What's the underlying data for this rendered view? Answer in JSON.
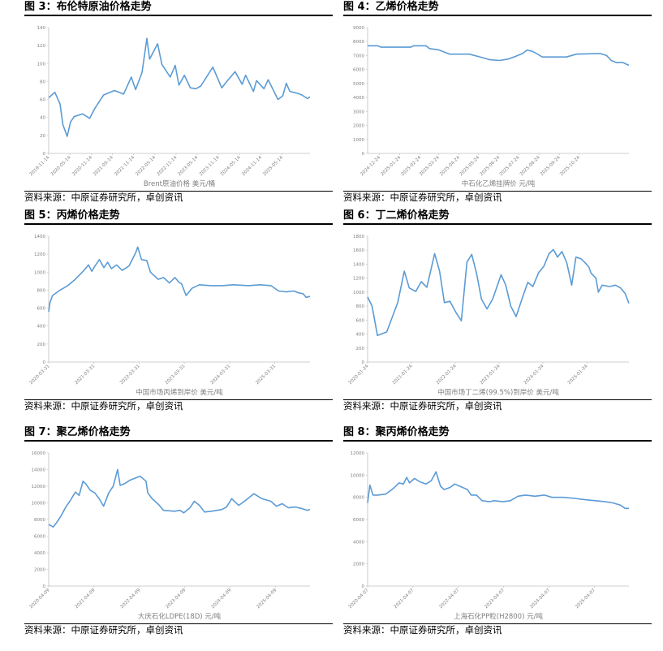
{
  "chart_data": [
    {
      "id": "c1",
      "type": "line",
      "figure_title": "图 3：布伦特原油价格走势",
      "xlabel": "Brent原油价格 美元/桶",
      "source": "资料来源：中原证券研究所，卓创资讯",
      "ylim": [
        0,
        140
      ],
      "yticks": [
        0,
        20,
        40,
        60,
        80,
        100,
        120,
        140
      ],
      "xrange": [
        "2019-11-14",
        "2026-01-10"
      ],
      "xticks": [
        "2019-11-14",
        "2020-05-14",
        "2020-11-14",
        "2021-05-14",
        "2021-11-14",
        "2022-05-14",
        "2022-11-14",
        "2023-05-14",
        "2023-11-14",
        "2024-05-14",
        "2024-11-14",
        "2025-05-14"
      ],
      "color": "#5b9bd5",
      "points": [
        [
          "2019-11-14",
          62
        ],
        [
          "2020-01-06",
          68
        ],
        [
          "2020-02-20",
          55
        ],
        [
          "2020-03-15",
          32
        ],
        [
          "2020-04-21",
          19
        ],
        [
          "2020-05-20",
          35
        ],
        [
          "2020-06-20",
          41
        ],
        [
          "2020-09-01",
          44
        ],
        [
          "2020-11-01",
          39
        ],
        [
          "2020-12-15",
          50
        ],
        [
          "2021-03-01",
          65
        ],
        [
          "2021-06-01",
          70
        ],
        [
          "2021-08-20",
          66
        ],
        [
          "2021-10-25",
          85
        ],
        [
          "2021-12-01",
          71
        ],
        [
          "2022-01-25",
          90
        ],
        [
          "2022-03-08",
          128
        ],
        [
          "2022-04-01",
          105
        ],
        [
          "2022-06-08",
          122
        ],
        [
          "2022-07-15",
          99
        ],
        [
          "2022-09-25",
          85
        ],
        [
          "2022-11-07",
          98
        ],
        [
          "2022-12-09",
          76
        ],
        [
          "2023-01-25",
          87
        ],
        [
          "2023-03-17",
          73
        ],
        [
          "2023-05-04",
          72
        ],
        [
          "2023-06-15",
          75
        ],
        [
          "2023-09-27",
          96
        ],
        [
          "2023-12-12",
          73
        ],
        [
          "2024-01-25",
          80
        ],
        [
          "2024-04-05",
          91
        ],
        [
          "2024-06-05",
          77
        ],
        [
          "2024-07-05",
          87
        ],
        [
          "2024-09-10",
          69
        ],
        [
          "2024-10-07",
          81
        ],
        [
          "2024-12-10",
          72
        ],
        [
          "2025-01-15",
          82
        ],
        [
          "2025-04-09",
          60
        ],
        [
          "2025-05-20",
          64
        ],
        [
          "2025-06-20",
          78
        ],
        [
          "2025-07-20",
          69
        ],
        [
          "2025-09-20",
          67
        ],
        [
          "2025-11-01",
          65
        ],
        [
          "2025-12-20",
          61
        ],
        [
          "2026-01-10",
          63
        ]
      ]
    },
    {
      "id": "c2",
      "type": "line",
      "figure_title": "图 4：乙烯价格走势",
      "xlabel": "中石化乙烯挂牌价 元/吨",
      "source": "资料来源：中原证券研究所，卓创资讯",
      "ylim": [
        0,
        9000
      ],
      "yticks": [
        0,
        1000,
        2000,
        3000,
        4000,
        5000,
        6000,
        7000,
        8000,
        9000
      ],
      "xrange": [
        "2024-12-06",
        "2026-01-08"
      ],
      "xticks": [
        "2024-12-24",
        "2025-01-24",
        "2025-02-24",
        "2025-03-24",
        "2025-04-24",
        "2025-05-24",
        "2025-06-24",
        "2025-07-24",
        "2025-08-24",
        "2025-09-24",
        "2025-10-24"
      ],
      "color": "#5b9bd5",
      "points": [
        [
          "2024-12-06",
          7700
        ],
        [
          "2024-12-22",
          7700
        ],
        [
          "2024-12-26",
          7600
        ],
        [
          "2025-02-10",
          7600
        ],
        [
          "2025-02-14",
          7700
        ],
        [
          "2025-03-05",
          7700
        ],
        [
          "2025-03-10",
          7500
        ],
        [
          "2025-03-25",
          7400
        ],
        [
          "2025-04-10",
          7100
        ],
        [
          "2025-05-10",
          7100
        ],
        [
          "2025-05-30",
          6850
        ],
        [
          "2025-06-10",
          6700
        ],
        [
          "2025-06-25",
          6650
        ],
        [
          "2025-07-08",
          6750
        ],
        [
          "2025-07-20",
          6950
        ],
        [
          "2025-07-30",
          7150
        ],
        [
          "2025-08-06",
          7400
        ],
        [
          "2025-08-14",
          7300
        ],
        [
          "2025-08-22",
          7100
        ],
        [
          "2025-08-29",
          6900
        ],
        [
          "2025-09-12",
          6900
        ],
        [
          "2025-10-05",
          6900
        ],
        [
          "2025-10-20",
          7100
        ],
        [
          "2025-11-25",
          7150
        ],
        [
          "2025-12-05",
          7000
        ],
        [
          "2025-12-12",
          6650
        ],
        [
          "2025-12-20",
          6500
        ],
        [
          "2025-12-30",
          6500
        ],
        [
          "2026-01-08",
          6300
        ]
      ]
    },
    {
      "id": "c3",
      "type": "line",
      "figure_title": "图 5：丙烯价格走势",
      "xlabel": "中国市场丙烯到岸价 美元/吨",
      "source": "资料来源：中原证券研究所，卓创资讯",
      "ylim": [
        0,
        1400
      ],
      "yticks": [
        0,
        200,
        400,
        600,
        800,
        1000,
        1200,
        1400
      ],
      "xrange": [
        "2020-03-31",
        "2026-01-10"
      ],
      "xticks": [
        "2020-03-31",
        "2021-03-31",
        "2022-03-31",
        "2023-03-31",
        "2024-03-31",
        "2025-03-31"
      ],
      "color": "#5b9bd5",
      "points": [
        [
          "2020-03-31",
          560
        ],
        [
          "2020-04-10",
          660
        ],
        [
          "2020-05-01",
          740
        ],
        [
          "2020-07-01",
          800
        ],
        [
          "2020-09-01",
          850
        ],
        [
          "2020-11-01",
          920
        ],
        [
          "2021-01-10",
          1020
        ],
        [
          "2021-02-15",
          1080
        ],
        [
          "2021-03-15",
          1010
        ],
        [
          "2021-04-05",
          1060
        ],
        [
          "2021-05-15",
          1140
        ],
        [
          "2021-06-20",
          1050
        ],
        [
          "2021-07-20",
          1110
        ],
        [
          "2021-08-20",
          1040
        ],
        [
          "2021-10-01",
          1080
        ],
        [
          "2021-11-15",
          1020
        ],
        [
          "2022-01-10",
          1070
        ],
        [
          "2022-03-05",
          1220
        ],
        [
          "2022-03-20",
          1280
        ],
        [
          "2022-04-20",
          1140
        ],
        [
          "2022-06-01",
          1130
        ],
        [
          "2022-07-01",
          1000
        ],
        [
          "2022-09-01",
          920
        ],
        [
          "2022-10-15",
          940
        ],
        [
          "2022-12-01",
          880
        ],
        [
          "2023-01-15",
          940
        ],
        [
          "2023-02-15",
          890
        ],
        [
          "2023-03-10",
          870
        ],
        [
          "2023-04-15",
          740
        ],
        [
          "2023-06-01",
          820
        ],
        [
          "2023-08-01",
          860
        ],
        [
          "2023-11-01",
          850
        ],
        [
          "2024-02-01",
          850
        ],
        [
          "2024-05-01",
          860
        ],
        [
          "2024-09-01",
          850
        ],
        [
          "2024-12-01",
          860
        ],
        [
          "2025-03-01",
          850
        ],
        [
          "2025-05-01",
          790
        ],
        [
          "2025-07-01",
          780
        ],
        [
          "2025-09-01",
          790
        ],
        [
          "2025-10-10",
          770
        ],
        [
          "2025-11-15",
          760
        ],
        [
          "2025-12-10",
          720
        ],
        [
          "2026-01-10",
          730
        ]
      ]
    },
    {
      "id": "c4",
      "type": "line",
      "figure_title": "图 6：丁二烯价格走势",
      "xlabel": "中国市场丁二烯(99.5%)到岸价 美元/吨",
      "source": "资料来源：中原证券研究所，卓创资讯",
      "ylim": [
        0,
        1800
      ],
      "yticks": [
        0,
        200,
        400,
        600,
        800,
        1000,
        1200,
        1400,
        1600,
        1800
      ],
      "xrange": [
        "2020-01-24",
        "2026-01-10"
      ],
      "xticks": [
        "2020-01-24",
        "2021-01-24",
        "2022-01-24",
        "2023-01-24",
        "2024-01-24",
        "2025-01-24"
      ],
      "color": "#5b9bd5",
      "points": [
        [
          "2020-01-24",
          930
        ],
        [
          "2020-03-01",
          800
        ],
        [
          "2020-04-15",
          380
        ],
        [
          "2020-07-01",
          430
        ],
        [
          "2020-10-01",
          850
        ],
        [
          "2020-11-25",
          1300
        ],
        [
          "2021-01-05",
          1060
        ],
        [
          "2021-03-01",
          1010
        ],
        [
          "2021-04-15",
          1150
        ],
        [
          "2021-06-01",
          1070
        ],
        [
          "2021-08-05",
          1550
        ],
        [
          "2021-09-15",
          1300
        ],
        [
          "2021-10-25",
          850
        ],
        [
          "2021-12-10",
          870
        ],
        [
          "2022-02-01",
          700
        ],
        [
          "2022-03-15",
          590
        ],
        [
          "2022-05-01",
          1430
        ],
        [
          "2022-06-10",
          1540
        ],
        [
          "2022-07-20",
          1270
        ],
        [
          "2022-08-30",
          900
        ],
        [
          "2022-10-15",
          760
        ],
        [
          "2022-12-01",
          900
        ],
        [
          "2023-02-10",
          1250
        ],
        [
          "2023-03-20",
          1100
        ],
        [
          "2023-05-01",
          800
        ],
        [
          "2023-06-15",
          650
        ],
        [
          "2023-08-10",
          940
        ],
        [
          "2023-09-20",
          1140
        ],
        [
          "2023-11-01",
          1080
        ],
        [
          "2023-12-20",
          1280
        ],
        [
          "2024-02-01",
          1370
        ],
        [
          "2024-03-15",
          1550
        ],
        [
          "2024-04-20",
          1610
        ],
        [
          "2024-05-25",
          1500
        ],
        [
          "2024-07-01",
          1580
        ],
        [
          "2024-08-10",
          1420
        ],
        [
          "2024-09-20",
          1100
        ],
        [
          "2024-10-25",
          1500
        ],
        [
          "2024-12-05",
          1480
        ],
        [
          "2025-01-10",
          1420
        ],
        [
          "2025-02-10",
          1360
        ],
        [
          "2025-03-01",
          1270
        ],
        [
          "2025-04-10",
          1200
        ],
        [
          "2025-05-01",
          1000
        ],
        [
          "2025-06-01",
          1100
        ],
        [
          "2025-08-01",
          1080
        ],
        [
          "2025-09-20",
          1100
        ],
        [
          "2025-11-01",
          1060
        ],
        [
          "2025-12-10",
          980
        ],
        [
          "2026-01-10",
          840
        ]
      ]
    },
    {
      "id": "c5",
      "type": "line",
      "figure_title": "图 7：聚乙烯价格走势",
      "xlabel": "大庆石化LDPE(18D) 元/吨",
      "source": "资料来源：中原证券研究所，卓创资讯",
      "ylim": [
        0,
        16000
      ],
      "yticks": [
        0,
        2000,
        4000,
        6000,
        8000,
        10000,
        12000,
        14000,
        16000
      ],
      "xrange": [
        "2020-04-09",
        "2026-01-10"
      ],
      "xticks": [
        "2020-04-09",
        "2021-04-09",
        "2022-04-09",
        "2023-04-09",
        "2024-04-09",
        "2025-04-09"
      ],
      "color": "#5b9bd5",
      "points": [
        [
          "2020-04-09",
          7400
        ],
        [
          "2020-05-15",
          7100
        ],
        [
          "2020-06-15",
          7700
        ],
        [
          "2020-07-20",
          8500
        ],
        [
          "2020-08-25",
          9500
        ],
        [
          "2020-10-01",
          10300
        ],
        [
          "2020-11-10",
          11300
        ],
        [
          "2020-12-10",
          10900
        ],
        [
          "2021-01-10",
          12600
        ],
        [
          "2021-02-01",
          12300
        ],
        [
          "2021-03-10",
          11500
        ],
        [
          "2021-04-15",
          11200
        ],
        [
          "2021-05-20",
          10500
        ],
        [
          "2021-06-25",
          9600
        ],
        [
          "2021-08-05",
          11200
        ],
        [
          "2021-09-10",
          12000
        ],
        [
          "2021-10-15",
          14000
        ],
        [
          "2021-11-05",
          12100
        ],
        [
          "2021-12-10",
          12300
        ],
        [
          "2022-01-20",
          12700
        ],
        [
          "2022-03-10",
          13000
        ],
        [
          "2022-04-15",
          13200
        ],
        [
          "2022-06-01",
          12600
        ],
        [
          "2022-06-15",
          11200
        ],
        [
          "2022-07-20",
          10500
        ],
        [
          "2022-09-10",
          9800
        ],
        [
          "2022-10-20",
          9100
        ],
        [
          "2023-01-15",
          9000
        ],
        [
          "2023-03-01",
          9100
        ],
        [
          "2023-04-01",
          8800
        ],
        [
          "2023-05-20",
          9400
        ],
        [
          "2023-06-25",
          10200
        ],
        [
          "2023-08-05",
          9700
        ],
        [
          "2023-09-15",
          8900
        ],
        [
          "2023-11-10",
          9000
        ],
        [
          "2024-02-01",
          9200
        ],
        [
          "2024-03-10",
          9500
        ],
        [
          "2024-04-20",
          10500
        ],
        [
          "2024-06-15",
          9700
        ],
        [
          "2024-08-01",
          10200
        ],
        [
          "2024-10-15",
          11100
        ],
        [
          "2024-12-20",
          10500
        ],
        [
          "2025-03-01",
          10200
        ],
        [
          "2025-04-15",
          9600
        ],
        [
          "2025-06-01",
          9900
        ],
        [
          "2025-07-20",
          9400
        ],
        [
          "2025-09-15",
          9500
        ],
        [
          "2025-11-10",
          9300
        ],
        [
          "2025-12-20",
          9100
        ],
        [
          "2026-01-10",
          9200
        ]
      ]
    },
    {
      "id": "c6",
      "type": "line",
      "figure_title": "图 8：聚丙烯价格走势",
      "xlabel": "上海石化PP粒(H2800) 元/吨",
      "source": "资料来源：中原证券研究所，卓创资讯",
      "ylim": [
        0,
        12000
      ],
      "yticks": [
        0,
        2000,
        4000,
        6000,
        8000,
        10000,
        12000
      ],
      "xrange": [
        "2020-04-07",
        "2026-01-10"
      ],
      "xticks": [
        "2020-04-07",
        "2021-04-07",
        "2022-04-07",
        "2023-04-07",
        "2024-04-07",
        "2025-04-07"
      ],
      "color": "#5b9bd5",
      "points": [
        [
          "2020-04-07",
          7500
        ],
        [
          "2020-04-25",
          9100
        ],
        [
          "2020-05-20",
          8200
        ],
        [
          "2020-07-01",
          8200
        ],
        [
          "2020-09-01",
          8300
        ],
        [
          "2020-11-01",
          8800
        ],
        [
          "2020-12-15",
          9300
        ],
        [
          "2021-01-20",
          9200
        ],
        [
          "2021-02-15",
          9800
        ],
        [
          "2021-03-10",
          9300
        ],
        [
          "2021-04-20",
          9700
        ],
        [
          "2021-06-01",
          9400
        ],
        [
          "2021-07-20",
          9200
        ],
        [
          "2021-09-01",
          9500
        ],
        [
          "2021-10-10",
          10300
        ],
        [
          "2021-11-15",
          9000
        ],
        [
          "2021-12-15",
          8700
        ],
        [
          "2022-02-01",
          8900
        ],
        [
          "2022-03-10",
          9200
        ],
        [
          "2022-04-20",
          9000
        ],
        [
          "2022-06-20",
          8700
        ],
        [
          "2022-07-20",
          8200
        ],
        [
          "2022-09-01",
          8200
        ],
        [
          "2022-10-15",
          7700
        ],
        [
          "2022-12-15",
          7600
        ],
        [
          "2023-01-20",
          7700
        ],
        [
          "2023-04-01",
          7600
        ],
        [
          "2023-06-01",
          7700
        ],
        [
          "2023-08-01",
          8100
        ],
        [
          "2023-10-01",
          8200
        ],
        [
          "2023-12-15",
          8100
        ],
        [
          "2024-03-01",
          8200
        ],
        [
          "2024-05-01",
          8000
        ],
        [
          "2024-08-01",
          8000
        ],
        [
          "2024-11-01",
          7900
        ],
        [
          "2025-01-15",
          7800
        ],
        [
          "2025-04-15",
          7700
        ],
        [
          "2025-07-01",
          7600
        ],
        [
          "2025-09-01",
          7500
        ],
        [
          "2025-11-01",
          7300
        ],
        [
          "2025-12-10",
          7000
        ],
        [
          "2026-01-10",
          7000
        ]
      ]
    }
  ]
}
